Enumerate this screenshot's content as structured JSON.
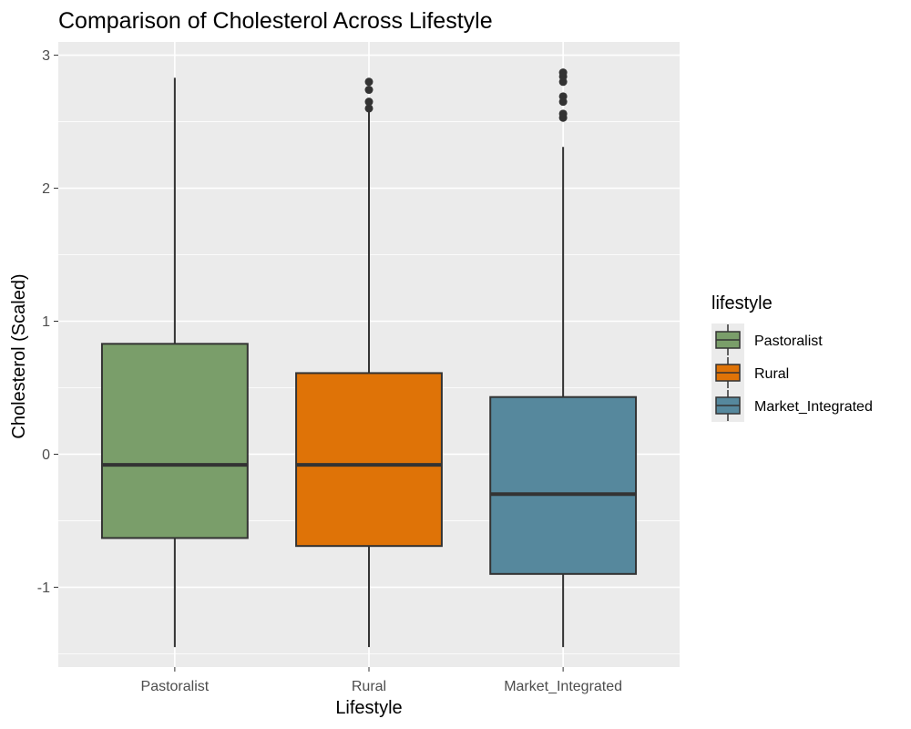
{
  "chart_data": {
    "type": "box",
    "title": "Comparison of Cholesterol Across Lifestyle",
    "xlabel": "Lifestyle",
    "ylabel": "Cholesterol (Scaled)",
    "ylim": [
      -1.6,
      3.1
    ],
    "yticks": [
      -1,
      0,
      1,
      2,
      3
    ],
    "ytick_labels": [
      "-1",
      "0",
      "1",
      "2",
      "3"
    ],
    "grid": true,
    "legend": {
      "title": "lifestyle",
      "position": "right"
    },
    "categories": [
      "Pastoralist",
      "Rural",
      "Market_Integrated"
    ],
    "series": [
      {
        "name": "Pastoralist",
        "color": "#7A9E6A",
        "whisker_low": -1.45,
        "q1": -0.63,
        "median": -0.08,
        "q3": 0.83,
        "whisker_high": 2.83,
        "outliers": []
      },
      {
        "name": "Rural",
        "color": "#DF7307",
        "whisker_low": -1.45,
        "q1": -0.69,
        "median": -0.08,
        "q3": 0.61,
        "whisker_high": 2.58,
        "outliers": [
          2.6,
          2.65,
          2.74,
          2.8
        ]
      },
      {
        "name": "Market_Integrated",
        "color": "#56889D",
        "whisker_low": -1.45,
        "q1": -0.9,
        "median": -0.3,
        "q3": 0.43,
        "whisker_high": 2.31,
        "outliers": [
          2.53,
          2.56,
          2.65,
          2.69,
          2.8,
          2.84,
          2.87
        ]
      }
    ]
  }
}
